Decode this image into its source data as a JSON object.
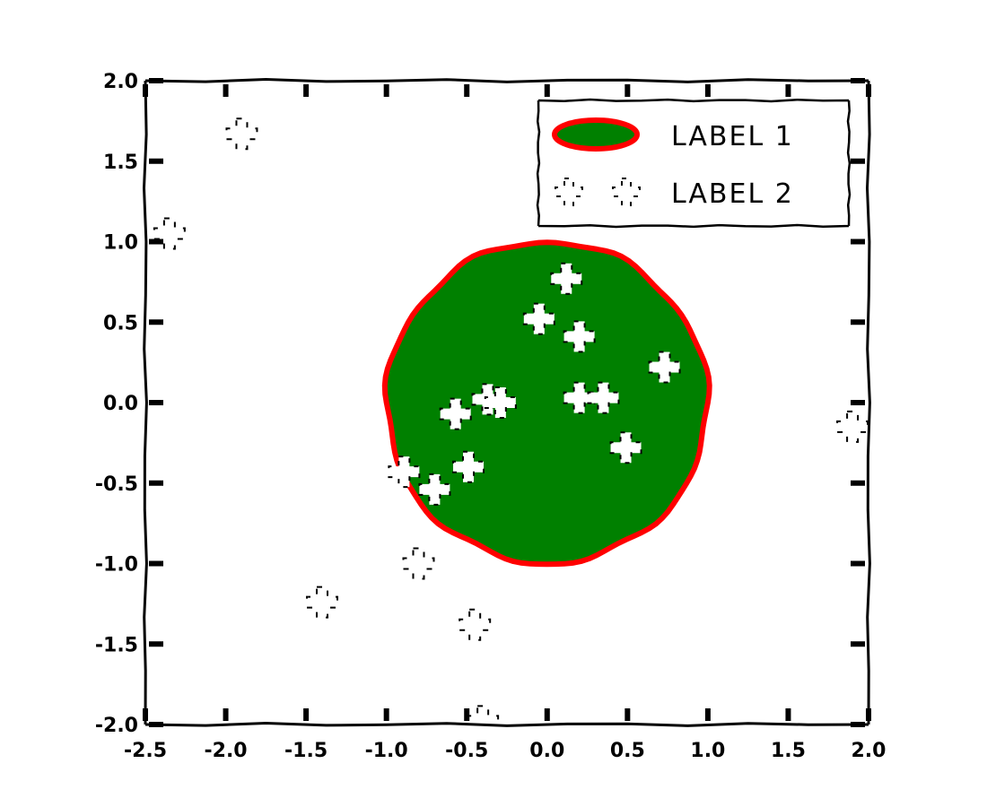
{
  "chart_data": {
    "type": "scatter",
    "title": "",
    "xlabel": "",
    "ylabel": "",
    "xlim": [
      -2.5,
      2.0
    ],
    "ylim": [
      -2.0,
      2.0
    ],
    "xticks": [
      -2.5,
      -2.0,
      -1.5,
      -1.0,
      -0.5,
      0.0,
      0.5,
      1.0,
      1.5,
      2.0
    ],
    "xtick_labels": [
      "-2.5",
      "-2.0",
      "-1.5",
      "-1.0",
      "-0.5",
      "0.0",
      "0.5",
      "1.0",
      "1.5",
      "2.0"
    ],
    "yticks": [
      -2.0,
      -1.5,
      -1.0,
      -0.5,
      0.0,
      0.5,
      1.0,
      1.5,
      2.0
    ],
    "ytick_labels": [
      "-2.0",
      "-1.5",
      "-1.0",
      "-0.5",
      "0.0",
      "0.5",
      "1.0",
      "1.5",
      "2.0"
    ],
    "grid": false,
    "legend_placement": "upper right",
    "circle": {
      "center": [
        0.0,
        0.0
      ],
      "radius": 1.0,
      "fill_color": "#008000",
      "edge_color": "#ff0000",
      "label": "Label 1"
    },
    "series": [
      {
        "name": "Label 2",
        "marker": "plus",
        "points_inside": [
          [
            0.12,
            0.77
          ],
          [
            -0.05,
            0.52
          ],
          [
            0.2,
            0.41
          ],
          [
            0.73,
            0.22
          ],
          [
            -0.37,
            0.02
          ],
          [
            -0.29,
            0.0
          ],
          [
            -0.57,
            -0.07
          ],
          [
            0.2,
            0.03
          ],
          [
            0.35,
            0.03
          ],
          [
            0.49,
            -0.28
          ],
          [
            -0.49,
            -0.4
          ],
          [
            -0.89,
            -0.43
          ],
          [
            -0.7,
            -0.54
          ]
        ],
        "points_outside": [
          [
            -1.9,
            1.67
          ],
          [
            -2.35,
            1.05
          ],
          [
            1.9,
            -0.15
          ],
          [
            -0.8,
            -1.0
          ],
          [
            -1.4,
            -1.24
          ],
          [
            -0.45,
            -1.38
          ],
          [
            -0.4,
            -1.98
          ]
        ]
      }
    ],
    "legend": [
      {
        "label": "LABEL 1",
        "symbol": "ellipse"
      },
      {
        "label": "LABEL 2",
        "symbol": "plus-pair"
      }
    ],
    "colors": {
      "fill": "#008000",
      "edge": "#ff0000",
      "marker_inside": "#ffffff",
      "ink": "#000000"
    }
  }
}
